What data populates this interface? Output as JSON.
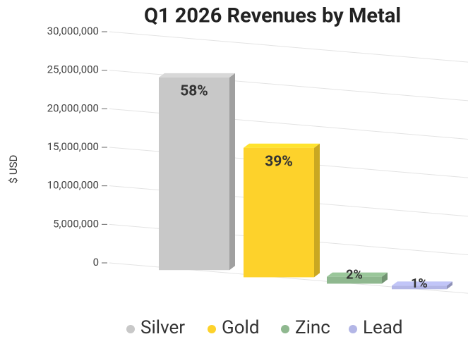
{
  "chart_data": {
    "type": "bar3d",
    "title": "Q1 2026 Revenues by Metal",
    "y_label": "$ USD",
    "categories": [
      "Silver",
      "Gold",
      "Zinc",
      "Lead"
    ],
    "values": [
      25000000,
      16800000,
      900000,
      450000
    ],
    "value_labels": [
      "58%",
      "39%",
      "2%",
      "1%"
    ],
    "colors": [
      "#c8c8c8",
      "#fdd22b",
      "#8fb88f",
      "#b3b6e6"
    ],
    "ylim": [
      0,
      30000000
    ],
    "yticks": [
      {
        "value": 0,
        "label": "0"
      },
      {
        "value": 5000000,
        "label": "5,000,000"
      },
      {
        "value": 10000000,
        "label": "10,000,000"
      },
      {
        "value": 15000000,
        "label": "15,000,000"
      },
      {
        "value": 20000000,
        "label": "20,000,000"
      },
      {
        "value": 25000000,
        "label": "25,000,000"
      },
      {
        "value": 30000000,
        "label": "30,000,000"
      }
    ],
    "grid": true,
    "legend": "bottom"
  }
}
